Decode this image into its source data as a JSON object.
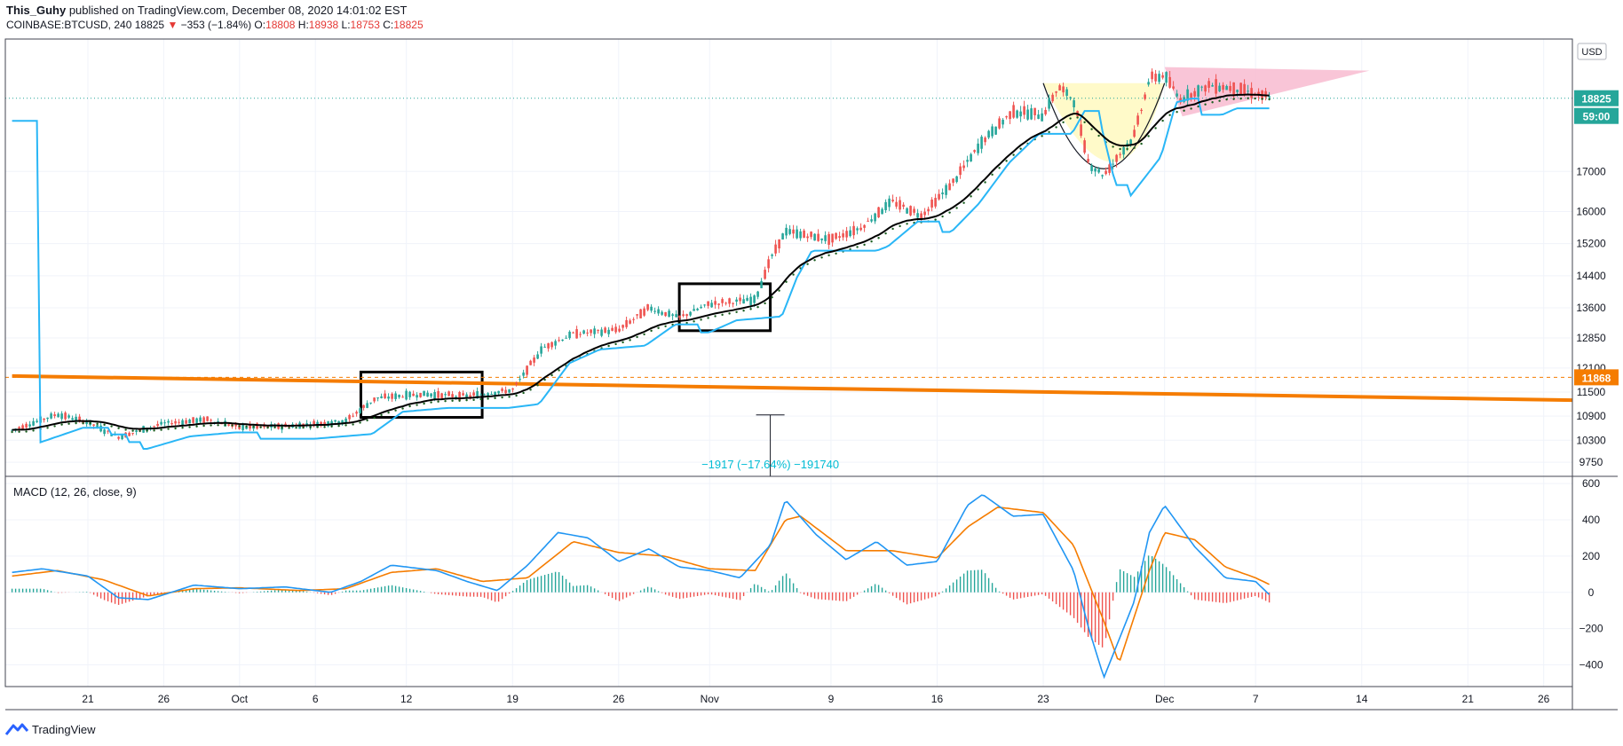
{
  "header": {
    "author": "This_Guhy",
    "published_text": "published on TradingView.com, December 08, 2020 14:01:02 EST",
    "symbol": "COINBASE:BTCUSD, 240",
    "last": "18825",
    "change_arrow": "▼",
    "change": "−353 (−1.84%)",
    "o_label": "O:",
    "o": "18808",
    "h_label": "H:",
    "h": "18938",
    "l_label": "L:",
    "l": "18753",
    "c_label": "C:",
    "c": "18825"
  },
  "footer": {
    "brand": "TradingView"
  },
  "colors": {
    "price_label": "#26a69a",
    "orange": "#f57c00",
    "supertrend": "#29b6f6",
    "macd": "#2196f3",
    "signal": "#f57c00",
    "hist_up": "#26a69a",
    "hist_down": "#ef5350",
    "magenta": "#e91e63",
    "green_dots": "#1b5e20",
    "grid": "#f0f3fa"
  },
  "chart_data": [
    {
      "type": "candlestick",
      "title": "COINBASE:BTCUSD, 240",
      "currency_label": "USD",
      "ylim": [
        9400,
        20300
      ],
      "y_ticks": [
        "17000",
        "16000",
        "15200",
        "14400",
        "13600",
        "12850",
        "12100",
        "11500",
        "10900",
        "10300",
        "9750"
      ],
      "x_ticks": [
        "21",
        "26",
        "Oct",
        "6",
        "12",
        "19",
        "26",
        "Nov",
        "9",
        "16",
        "23",
        "Dec",
        "7",
        "14",
        "21",
        "26"
      ],
      "x_tick_dates": [
        "2020-09-21",
        "2020-09-26",
        "2020-10-01",
        "2020-10-06",
        "2020-10-12",
        "2020-10-19",
        "2020-10-26",
        "2020-11-01",
        "2020-11-09",
        "2020-11-16",
        "2020-11-23",
        "2020-12-01",
        "2020-12-07",
        "2020-12-14",
        "2020-12-21",
        "2020-12-26"
      ],
      "price_path": [
        [
          "2020-09-16",
          10550
        ],
        [
          "2020-09-19",
          10950
        ],
        [
          "2020-09-21",
          10750
        ],
        [
          "2020-09-23",
          10380
        ],
        [
          "2020-09-26",
          10720
        ],
        [
          "2020-09-29",
          10820
        ],
        [
          "2020-10-01",
          10620
        ],
        [
          "2020-10-04",
          10650
        ],
        [
          "2020-10-08",
          10780
        ],
        [
          "2020-10-10",
          11350
        ],
        [
          "2020-10-13",
          11450
        ],
        [
          "2020-10-16",
          11400
        ],
        [
          "2020-10-19",
          11550
        ],
        [
          "2020-10-21",
          12600
        ],
        [
          "2020-10-23",
          12950
        ],
        [
          "2020-10-26",
          13050
        ],
        [
          "2020-10-28",
          13600
        ],
        [
          "2020-10-30",
          13350
        ],
        [
          "2020-11-01",
          13700
        ],
        [
          "2020-11-04",
          13800
        ],
        [
          "2020-11-05",
          14800
        ],
        [
          "2020-11-06",
          15500
        ],
        [
          "2020-11-09",
          15300
        ],
        [
          "2020-11-11",
          15600
        ],
        [
          "2020-11-13",
          16250
        ],
        [
          "2020-11-15",
          15900
        ],
        [
          "2020-11-17",
          16700
        ],
        [
          "2020-11-19",
          17750
        ],
        [
          "2020-11-21",
          18500
        ],
        [
          "2020-11-23",
          18400
        ],
        [
          "2020-11-24",
          19100
        ],
        [
          "2020-11-25",
          18800
        ],
        [
          "2020-11-26",
          17200
        ],
        [
          "2020-11-27",
          16900
        ],
        [
          "2020-11-29",
          17900
        ],
        [
          "2020-11-30",
          19300
        ],
        [
          "2020-12-01",
          19400
        ],
        [
          "2020-12-02",
          18800
        ],
        [
          "2020-12-04",
          19150
        ],
        [
          "2020-12-06",
          19050
        ],
        [
          "2020-12-08",
          18825
        ]
      ],
      "current_price": {
        "label": "18825",
        "value": 18825,
        "countdown": "59:00"
      },
      "orange_level": {
        "label": "11868",
        "value": 11868
      },
      "trendline": {
        "start": [
          "2020-09-16",
          11900
        ],
        "end": [
          "2020-12-31",
          11300
        ]
      },
      "boxes": [
        {
          "from": "2020-10-09",
          "to": "2020-10-17",
          "low": 10870,
          "high": 12000
        },
        {
          "from": "2020-10-30",
          "to": "2020-11-05",
          "low": 13030,
          "high": 14200
        }
      ],
      "triangle": {
        "start": "2020-12-01",
        "end": "2020-12-11",
        "top": 19600,
        "bottom": 18370
      },
      "cup": {
        "from": "2020-11-23",
        "to": "2020-12-01",
        "rim": 19200,
        "low": 16150
      },
      "measure": {
        "date": "2020-11-05",
        "from": 10930,
        "to": 9400,
        "label": "−1917 (−17.64%) −191740"
      }
    },
    {
      "type": "line",
      "title": "MACD (12, 26, close, 9)",
      "ylim": [
        -520,
        640
      ],
      "y_ticks": [
        "600",
        "400",
        "200",
        "0",
        "−200",
        "−400"
      ],
      "series": [
        {
          "name": "MACD",
          "color": "#2196f3",
          "points": [
            [
              "2020-09-16",
              110
            ],
            [
              "2020-09-18",
              130
            ],
            [
              "2020-09-21",
              90
            ],
            [
              "2020-09-23",
              -30
            ],
            [
              "2020-09-25",
              -40
            ],
            [
              "2020-09-28",
              40
            ],
            [
              "2020-10-01",
              20
            ],
            [
              "2020-10-04",
              30
            ],
            [
              "2020-10-07",
              0
            ],
            [
              "2020-10-09",
              60
            ],
            [
              "2020-10-11",
              150
            ],
            [
              "2020-10-14",
              120
            ],
            [
              "2020-10-16",
              60
            ],
            [
              "2020-10-18",
              10
            ],
            [
              "2020-10-20",
              150
            ],
            [
              "2020-10-22",
              330
            ],
            [
              "2020-10-24",
              300
            ],
            [
              "2020-10-26",
              170
            ],
            [
              "2020-10-28",
              240
            ],
            [
              "2020-10-30",
              140
            ],
            [
              "2020-11-01",
              120
            ],
            [
              "2020-11-03",
              80
            ],
            [
              "2020-11-05",
              260
            ],
            [
              "2020-11-06",
              510
            ],
            [
              "2020-11-08",
              320
            ],
            [
              "2020-11-10",
              180
            ],
            [
              "2020-11-12",
              280
            ],
            [
              "2020-11-14",
              150
            ],
            [
              "2020-11-16",
              170
            ],
            [
              "2020-11-18",
              480
            ],
            [
              "2020-11-19",
              540
            ],
            [
              "2020-11-21",
              420
            ],
            [
              "2020-11-23",
              430
            ],
            [
              "2020-11-25",
              120
            ],
            [
              "2020-11-26",
              -200
            ],
            [
              "2020-11-27",
              -470
            ],
            [
              "2020-11-29",
              -50
            ],
            [
              "2020-11-30",
              330
            ],
            [
              "2020-12-01",
              480
            ],
            [
              "2020-12-03",
              250
            ],
            [
              "2020-12-05",
              80
            ],
            [
              "2020-12-07",
              60
            ],
            [
              "2020-12-08",
              -20
            ]
          ]
        },
        {
          "name": "Signal",
          "color": "#f57c00",
          "points": [
            [
              "2020-09-16",
              90
            ],
            [
              "2020-09-19",
              120
            ],
            [
              "2020-09-22",
              70
            ],
            [
              "2020-09-25",
              -20
            ],
            [
              "2020-09-28",
              20
            ],
            [
              "2020-10-01",
              25
            ],
            [
              "2020-10-05",
              10
            ],
            [
              "2020-10-08",
              20
            ],
            [
              "2020-10-11",
              110
            ],
            [
              "2020-10-14",
              130
            ],
            [
              "2020-10-17",
              60
            ],
            [
              "2020-10-20",
              80
            ],
            [
              "2020-10-23",
              280
            ],
            [
              "2020-10-26",
              220
            ],
            [
              "2020-10-29",
              200
            ],
            [
              "2020-11-01",
              130
            ],
            [
              "2020-11-04",
              120
            ],
            [
              "2020-11-06",
              400
            ],
            [
              "2020-11-07",
              420
            ],
            [
              "2020-11-10",
              230
            ],
            [
              "2020-11-13",
              230
            ],
            [
              "2020-11-16",
              190
            ],
            [
              "2020-11-18",
              360
            ],
            [
              "2020-11-20",
              470
            ],
            [
              "2020-11-23",
              440
            ],
            [
              "2020-11-25",
              260
            ],
            [
              "2020-11-27",
              -160
            ],
            [
              "2020-11-28",
              -390
            ],
            [
              "2020-11-30",
              120
            ],
            [
              "2020-12-01",
              330
            ],
            [
              "2020-12-03",
              290
            ],
            [
              "2020-12-05",
              140
            ],
            [
              "2020-12-07",
              80
            ],
            [
              "2020-12-08",
              40
            ]
          ]
        }
      ]
    }
  ]
}
